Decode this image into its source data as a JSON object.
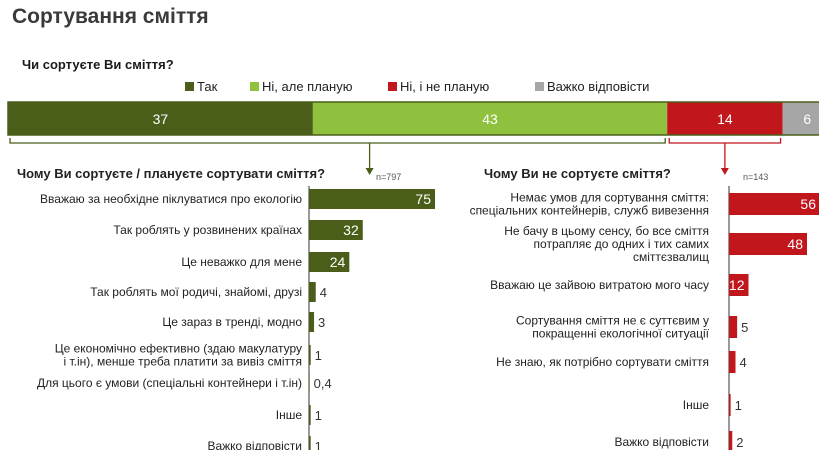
{
  "title": "Сортування сміття",
  "question_main": "Чи сортуєте  Ви сміття?",
  "legend": [
    {
      "label": "Так",
      "color": "#4a5e1a"
    },
    {
      "label": "Ні, але планую",
      "color": "#8fc13e"
    },
    {
      "label": "Ні, і не планую",
      "color": "#c0161c"
    },
    {
      "label": "Важко відповісти",
      "color": "#a6a6a6"
    }
  ],
  "left_question": "Чому Ви сортуєте / плануєте сортувати сміття?",
  "left_n": "n=797",
  "right_question": "Чому Ви не сортуєте  сміття?",
  "right_n": "n=143",
  "chart_data": [
    {
      "type": "bar",
      "orientation": "horizontal-stacked",
      "title": "Чи сортуєте  Ви сміття?",
      "series": [
        {
          "name": "Так",
          "values": [
            37
          ],
          "label": "37",
          "color": "#4a5e1a"
        },
        {
          "name": "Ні, але планую",
          "values": [
            43
          ],
          "label": "43",
          "color": "#8fc13e"
        },
        {
          "name": "Ні, і не планую",
          "values": [
            14
          ],
          "label": "14",
          "color": "#c0161c"
        },
        {
          "name": "Важко відповісти",
          "values": [
            6
          ],
          "label": "6",
          "color": "#a6a6a6"
        }
      ]
    },
    {
      "type": "bar",
      "orientation": "horizontal",
      "title": "Чому Ви сортуєте / плануєте сортувати сміття?",
      "color": "#4a5e1a",
      "xlim": [
        0,
        75
      ],
      "categories": [
        [
          "Вважаю за необхідне піклуватися  про екологію"
        ],
        [
          "Так роблять у розвинених країнах"
        ],
        [
          "Це неважко для мене"
        ],
        [
          "Так роблять мої родичі, знайомі,  друзі"
        ],
        [
          "Це зараз в тренді, модно"
        ],
        [
          "Це економічно ефективно (здаю макулатуру",
          "і т.ін),  менше треба платити  за вивіз сміття"
        ],
        [
          "Для цього є умови (спеціальні контейнери і т.ін)"
        ],
        [
          "Інше"
        ],
        [
          "Важко відповісти"
        ]
      ],
      "values": [
        75,
        32,
        24,
        4,
        3,
        1,
        0.4,
        1,
        1
      ],
      "labels": [
        "75",
        "32",
        "24",
        "4",
        "3",
        "1",
        "0,4",
        "1",
        "1"
      ]
    },
    {
      "type": "bar",
      "orientation": "horizontal",
      "title": "Чому Ви не сортуєте  сміття?",
      "color": "#c0161c",
      "xlim": [
        0,
        56
      ],
      "categories": [
        [
          "Немає умов для сортування сміття:",
          "спеціальних контейнерів, служб вивезення"
        ],
        [
          "Не бачу в цьому сенсу, бо все сміття",
          "потрапляє до одних і тих самих",
          "сміттєзвалищ"
        ],
        [
          "Вважаю це зайвою витратою мого часу"
        ],
        [
          "Сортування сміття не є суттєвим у",
          "покращенні екологічної ситуації"
        ],
        [
          "Не знаю, як потрібно сортувати сміття"
        ],
        [
          "Інше"
        ],
        [
          "Важко відповісти"
        ]
      ],
      "values": [
        56,
        48,
        12,
        5,
        4,
        1,
        2
      ],
      "labels": [
        "56",
        "48",
        "12",
        "5",
        "4",
        "1",
        "2"
      ]
    }
  ]
}
